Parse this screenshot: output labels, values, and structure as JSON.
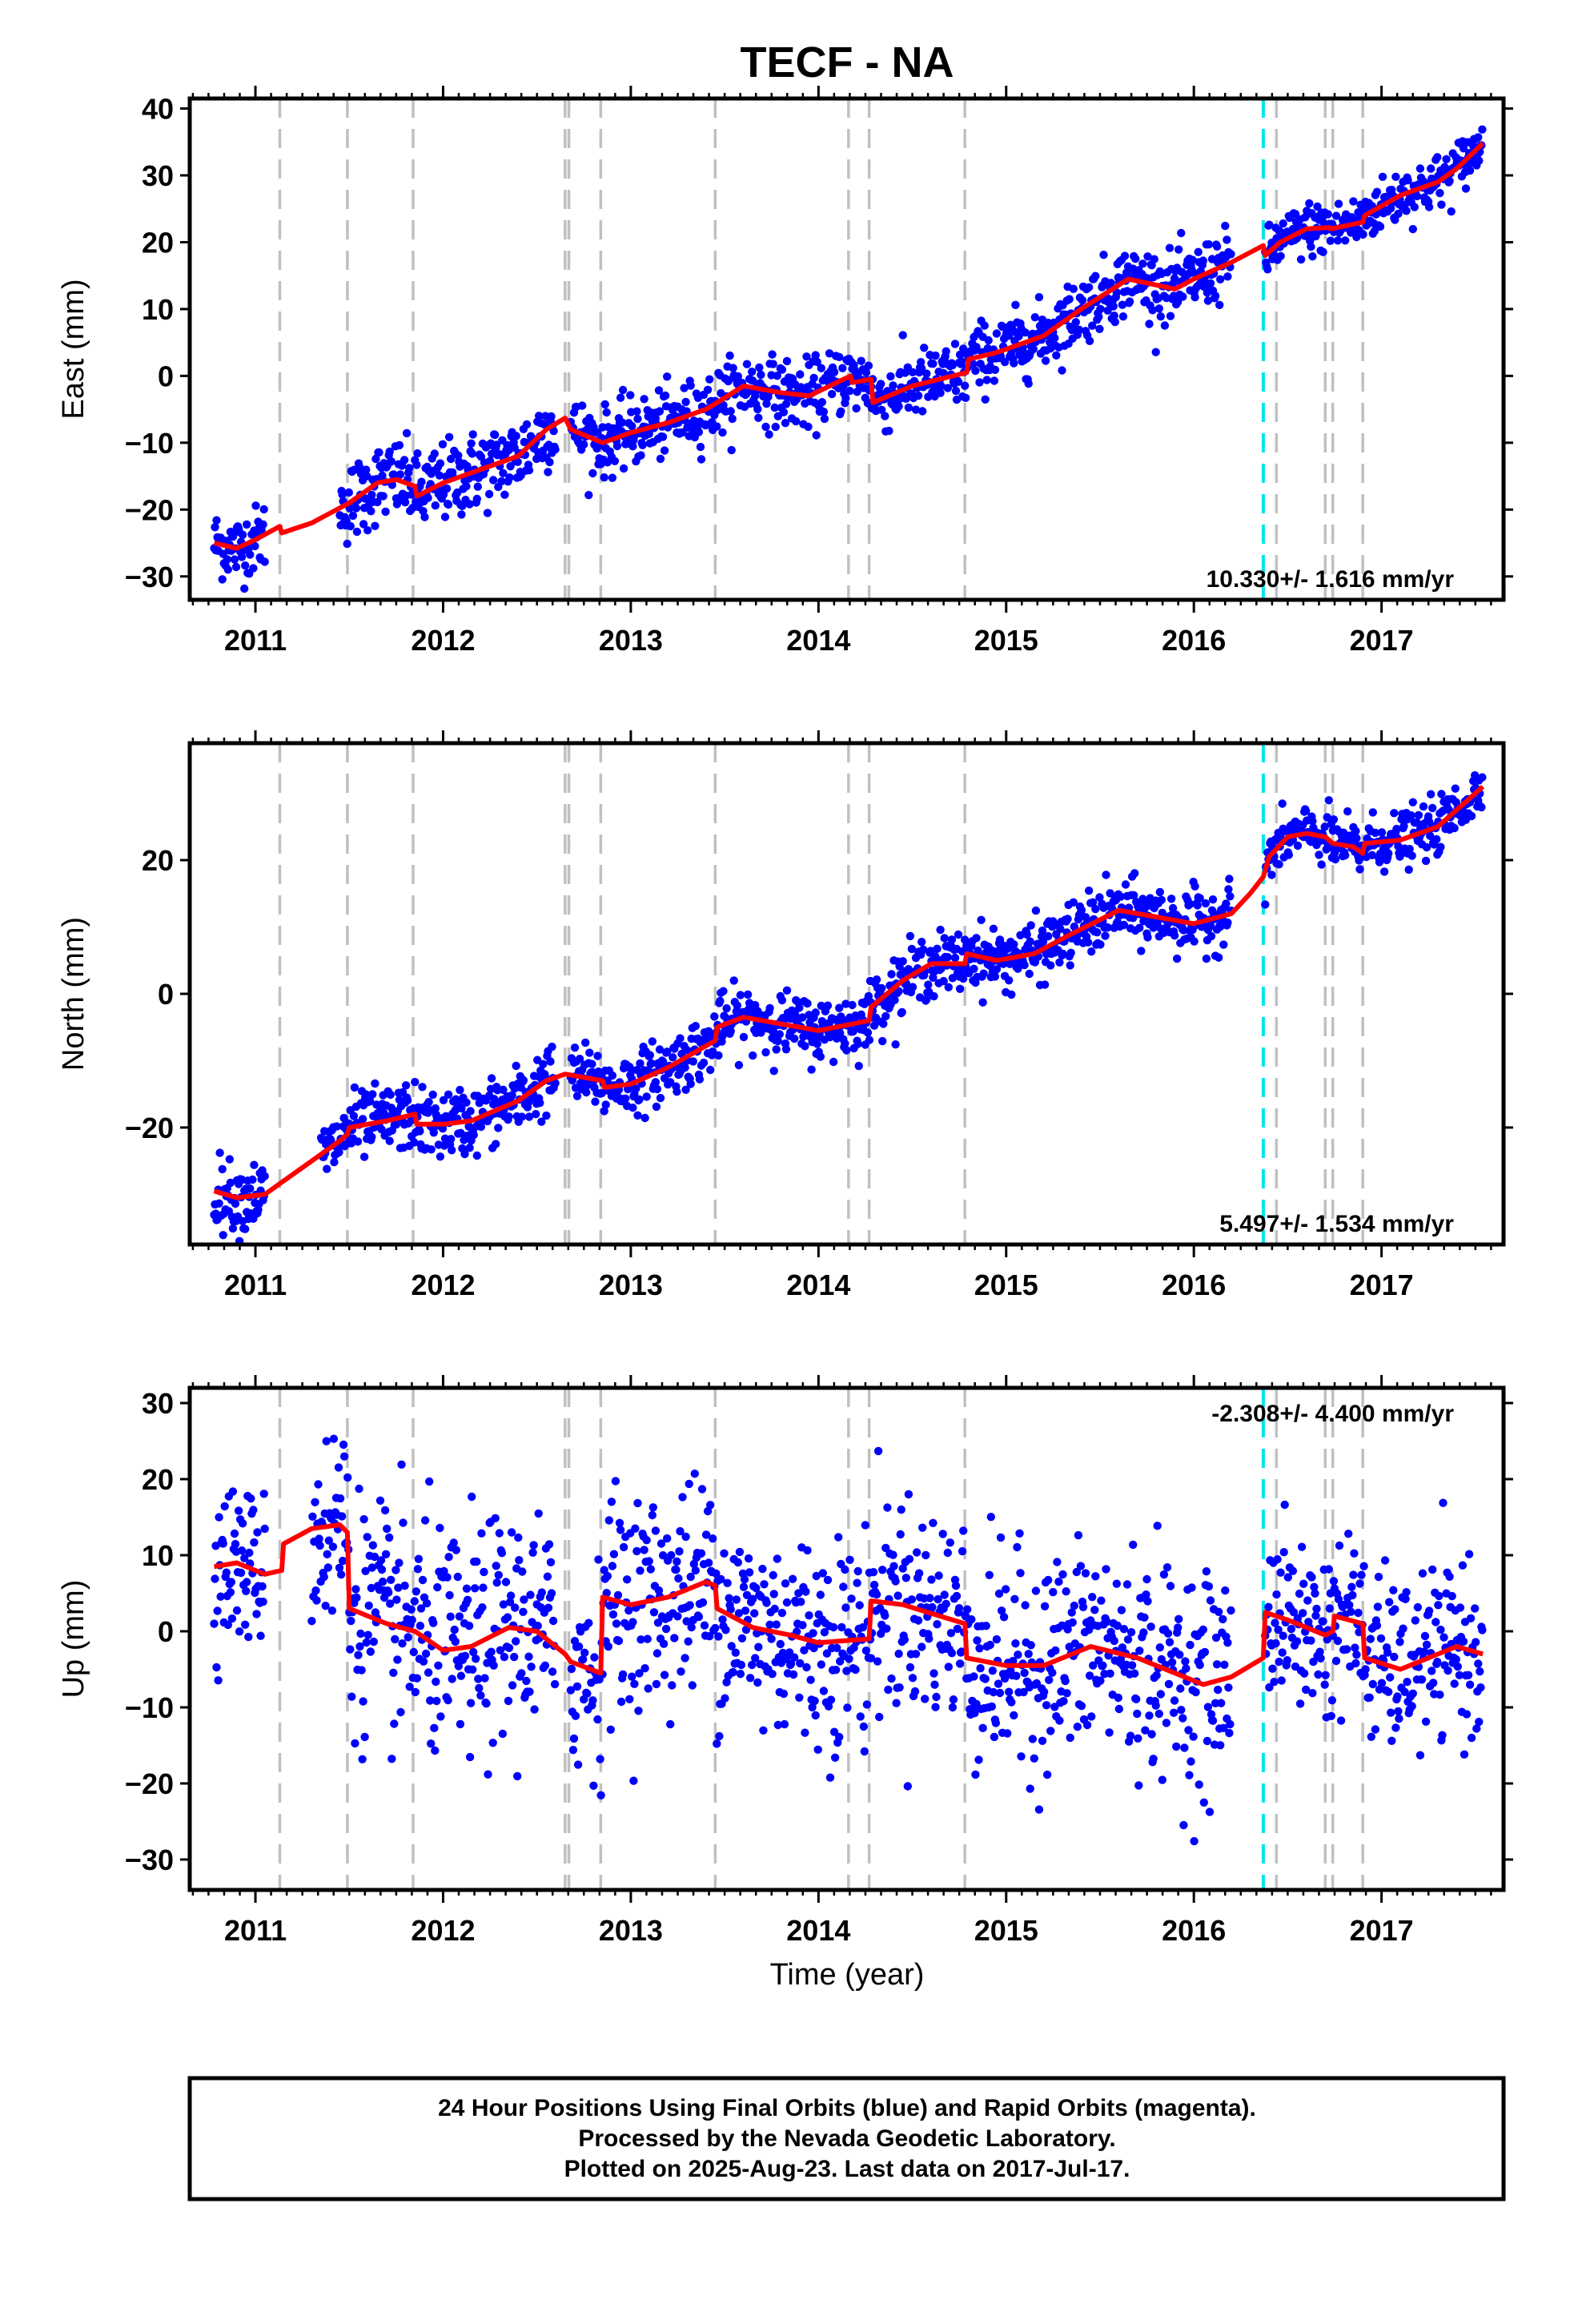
{
  "title": "TECF - NA",
  "xlabel": "Time (year)",
  "footer": [
    "24 Hour Positions Using Final Orbits (blue) and Rapid Orbits (magenta).",
    "Processed by the Nevada Geodetic Laboratory.",
    "Plotted on 2025-Aug-23. Last data on 2017-Jul-17."
  ],
  "colors": {
    "final_orbit": "#0000ff",
    "model": "#ff0000",
    "equipment_change": "#c0c0c0",
    "earthquake": "#00e5ee"
  },
  "chart_data": [
    {
      "type": "scatter",
      "ylabel": "East (mm)",
      "xlim": [
        2010.65,
        2017.65
      ],
      "ylim": [
        -33.5,
        41.5
      ],
      "yticks": [
        -30,
        -20,
        -10,
        0,
        10,
        20,
        30,
        40
      ],
      "xticks": [
        2011,
        2012,
        2013,
        2014,
        2015,
        2016,
        2017
      ],
      "rate_text": "10.330+/- 1.616 mm/yr",
      "rate_position": "bottom-right",
      "model_line": [
        [
          2010.78,
          -25
        ],
        [
          2010.9,
          -25.8
        ],
        [
          2011.0,
          -24.5
        ],
        [
          2011.13,
          -22.5
        ],
        [
          2011.14,
          -23.5
        ],
        [
          2011.3,
          -22
        ],
        [
          2011.5,
          -19
        ],
        [
          2011.65,
          -16
        ],
        [
          2011.75,
          -15.5
        ],
        [
          2011.85,
          -16.5
        ],
        [
          2011.86,
          -18
        ],
        [
          2012.0,
          -16
        ],
        [
          2012.2,
          -14
        ],
        [
          2012.4,
          -12
        ],
        [
          2012.55,
          -8
        ],
        [
          2012.65,
          -6.3
        ],
        [
          2012.68,
          -8
        ],
        [
          2012.85,
          -10
        ],
        [
          2013.0,
          -8.5
        ],
        [
          2013.2,
          -7
        ],
        [
          2013.4,
          -5
        ],
        [
          2013.46,
          -4
        ],
        [
          2013.6,
          -1.5
        ],
        [
          2013.8,
          -2.5
        ],
        [
          2013.95,
          -3
        ],
        [
          2014.17,
          0
        ],
        [
          2014.18,
          -1
        ],
        [
          2014.28,
          -0.5
        ],
        [
          2014.29,
          -4
        ],
        [
          2014.5,
          -1.5
        ],
        [
          2014.79,
          0.5
        ],
        [
          2014.8,
          2.5
        ],
        [
          2014.95,
          3.5
        ],
        [
          2015.2,
          6
        ],
        [
          2015.4,
          10
        ],
        [
          2015.65,
          14.5
        ],
        [
          2015.9,
          13
        ],
        [
          2016.0,
          14.5
        ],
        [
          2016.2,
          17
        ],
        [
          2016.37,
          19.5
        ],
        [
          2016.38,
          18
        ],
        [
          2016.46,
          20
        ],
        [
          2016.6,
          22
        ],
        [
          2016.72,
          22.2
        ],
        [
          2016.73,
          22
        ],
        [
          2016.9,
          23
        ],
        [
          2016.91,
          24
        ],
        [
          2017.1,
          27
        ],
        [
          2017.3,
          29
        ],
        [
          2017.4,
          31
        ],
        [
          2017.54,
          34.8
        ]
      ],
      "scatter_segments": [
        {
          "x0": 2010.78,
          "x1": 2011.05,
          "spread": 2.5
        },
        {
          "x0": 2011.45,
          "x1": 2012.6,
          "spread": 3.0
        },
        {
          "x0": 2012.68,
          "x1": 2016.2,
          "spread": 2.5
        },
        {
          "x0": 2016.38,
          "x1": 2017.54,
          "spread": 2.0
        }
      ],
      "equipment_changes": [
        2011.13,
        2011.49,
        2011.84,
        2012.65,
        2012.67,
        2012.84,
        2013.45,
        2014.16,
        2014.27,
        2014.78,
        2016.44,
        2016.7,
        2016.74,
        2016.9
      ],
      "earthquakes": [
        2016.37
      ]
    },
    {
      "type": "scatter",
      "ylabel": "North (mm)",
      "xlim": [
        2010.65,
        2017.65
      ],
      "ylim": [
        -37.5,
        37.5
      ],
      "yticks": [
        -20,
        0,
        20
      ],
      "xticks": [
        2011,
        2012,
        2013,
        2014,
        2015,
        2016,
        2017
      ],
      "rate_text": "5.497+/- 1.534 mm/yr",
      "rate_position": "bottom-right",
      "model_line": [
        [
          2010.78,
          -29.5
        ],
        [
          2010.9,
          -30.5
        ],
        [
          2011.05,
          -30
        ],
        [
          2011.15,
          -28
        ],
        [
          2011.3,
          -25
        ],
        [
          2011.45,
          -22
        ],
        [
          2011.49,
          -21
        ],
        [
          2011.5,
          -20
        ],
        [
          2011.7,
          -19
        ],
        [
          2011.85,
          -18
        ],
        [
          2011.86,
          -19.5
        ],
        [
          2012.0,
          -19.5
        ],
        [
          2012.15,
          -19
        ],
        [
          2012.4,
          -16
        ],
        [
          2012.55,
          -13
        ],
        [
          2012.65,
          -12
        ],
        [
          2012.85,
          -13
        ],
        [
          2012.86,
          -14
        ],
        [
          2013.0,
          -13.5
        ],
        [
          2013.2,
          -11
        ],
        [
          2013.45,
          -7
        ],
        [
          2013.46,
          -5
        ],
        [
          2013.6,
          -3.5
        ],
        [
          2013.8,
          -4.5
        ],
        [
          2014.0,
          -5.5
        ],
        [
          2014.27,
          -4
        ],
        [
          2014.28,
          -2
        ],
        [
          2014.45,
          2
        ],
        [
          2014.6,
          4.5
        ],
        [
          2014.78,
          4.5
        ],
        [
          2014.79,
          6
        ],
        [
          2014.95,
          5
        ],
        [
          2015.15,
          6
        ],
        [
          2015.35,
          9
        ],
        [
          2015.6,
          12.5
        ],
        [
          2015.8,
          11.5
        ],
        [
          2016.0,
          10.5
        ],
        [
          2016.2,
          12
        ],
        [
          2016.3,
          15
        ],
        [
          2016.37,
          17.5
        ],
        [
          2016.4,
          20.5
        ],
        [
          2016.5,
          23.5
        ],
        [
          2016.6,
          24
        ],
        [
          2016.7,
          23.5
        ],
        [
          2016.74,
          22.5
        ],
        [
          2016.85,
          22
        ],
        [
          2016.9,
          21
        ],
        [
          2016.91,
          22.5
        ],
        [
          2017.1,
          23
        ],
        [
          2017.3,
          25
        ],
        [
          2017.54,
          31
        ]
      ],
      "scatter_segments": [
        {
          "x0": 2010.78,
          "x1": 2011.05,
          "spread": 2.5
        },
        {
          "x0": 2011.35,
          "x1": 2012.6,
          "spread": 2.5
        },
        {
          "x0": 2012.68,
          "x1": 2016.2,
          "spread": 2.3
        },
        {
          "x0": 2016.38,
          "x1": 2017.54,
          "spread": 2.0
        }
      ],
      "equipment_changes": [
        2011.13,
        2011.49,
        2011.84,
        2012.65,
        2012.67,
        2012.84,
        2013.45,
        2014.16,
        2014.27,
        2014.78,
        2016.44,
        2016.7,
        2016.74,
        2016.9
      ],
      "earthquakes": [
        2016.37
      ]
    },
    {
      "type": "scatter",
      "ylabel": "Up (mm)",
      "xlim": [
        2010.65,
        2017.65
      ],
      "ylim": [
        -34,
        32
      ],
      "yticks": [
        -30,
        -20,
        -10,
        0,
        10,
        20,
        30
      ],
      "xticks": [
        2011,
        2012,
        2013,
        2014,
        2015,
        2016,
        2017
      ],
      "rate_text": "-2.308+/- 4.400 mm/yr",
      "rate_position": "top-right",
      "model_line": [
        [
          2010.78,
          8.5
        ],
        [
          2010.9,
          9
        ],
        [
          2011.0,
          8
        ],
        [
          2011.05,
          7.5
        ],
        [
          2011.14,
          8
        ],
        [
          2011.15,
          11.5
        ],
        [
          2011.3,
          13.5
        ],
        [
          2011.45,
          14
        ],
        [
          2011.49,
          13
        ],
        [
          2011.5,
          3
        ],
        [
          2011.7,
          1
        ],
        [
          2011.85,
          0
        ],
        [
          2012.0,
          -2.5
        ],
        [
          2012.15,
          -2
        ],
        [
          2012.35,
          0.5
        ],
        [
          2012.5,
          0
        ],
        [
          2012.65,
          -3
        ],
        [
          2012.68,
          -4
        ],
        [
          2012.84,
          -5.5
        ],
        [
          2012.85,
          4.5
        ],
        [
          2013.0,
          3.5
        ],
        [
          2013.2,
          4.5
        ],
        [
          2013.4,
          6.5
        ],
        [
          2013.45,
          6
        ],
        [
          2013.46,
          3
        ],
        [
          2013.65,
          0.5
        ],
        [
          2013.85,
          -0.5
        ],
        [
          2014.0,
          -1.5
        ],
        [
          2014.27,
          -1
        ],
        [
          2014.28,
          4
        ],
        [
          2014.45,
          3.5
        ],
        [
          2014.78,
          1
        ],
        [
          2014.79,
          -3.5
        ],
        [
          2015.0,
          -4.5
        ],
        [
          2015.2,
          -4.5
        ],
        [
          2015.45,
          -2
        ],
        [
          2015.7,
          -3.5
        ],
        [
          2015.9,
          -5.5
        ],
        [
          2016.05,
          -7
        ],
        [
          2016.2,
          -6
        ],
        [
          2016.37,
          -3.5
        ],
        [
          2016.38,
          2.5
        ],
        [
          2016.5,
          1.5
        ],
        [
          2016.7,
          -0.5
        ],
        [
          2016.74,
          0
        ],
        [
          2016.75,
          2
        ],
        [
          2016.9,
          1
        ],
        [
          2016.91,
          -3.5
        ],
        [
          2017.1,
          -5
        ],
        [
          2017.3,
          -3
        ],
        [
          2017.4,
          -2
        ],
        [
          2017.54,
          -3
        ]
      ],
      "scatter_segments": [
        {
          "x0": 2010.78,
          "x1": 2011.05,
          "spread": 5.0
        },
        {
          "x0": 2011.3,
          "x1": 2012.6,
          "spread": 7.5
        },
        {
          "x0": 2012.68,
          "x1": 2016.2,
          "spread": 7.0
        },
        {
          "x0": 2016.38,
          "x1": 2017.54,
          "spread": 5.5
        }
      ],
      "equipment_changes": [
        2011.13,
        2011.49,
        2011.84,
        2012.65,
        2012.67,
        2012.84,
        2013.45,
        2014.16,
        2014.27,
        2014.78,
        2016.44,
        2016.7,
        2016.74,
        2016.9
      ],
      "earthquakes": [
        2016.37
      ]
    }
  ]
}
